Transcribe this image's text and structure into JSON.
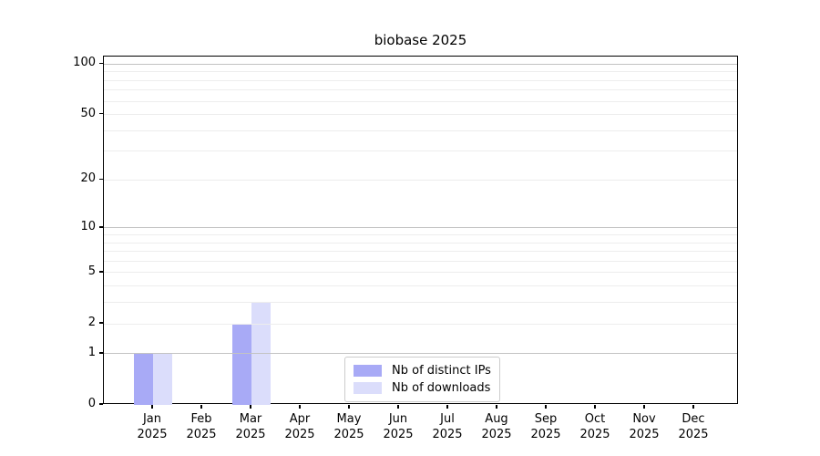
{
  "chart_data": {
    "type": "bar",
    "title": "biobase 2025",
    "x_axis": {
      "months": [
        "Jan",
        "Feb",
        "Mar",
        "Apr",
        "May",
        "Jun",
        "Jul",
        "Aug",
        "Sep",
        "Oct",
        "Nov",
        "Dec"
      ],
      "year": "2025"
    },
    "y_axis": {
      "scale": "log1p",
      "tick_labels": [
        "0",
        "1",
        "2",
        "5",
        "10",
        "20",
        "50",
        "100"
      ],
      "tick_values": [
        0,
        1,
        2,
        5,
        10,
        20,
        50,
        100
      ],
      "major_grid_values": [
        1,
        10,
        100
      ],
      "minor_grid_values": [
        2,
        3,
        4,
        5,
        6,
        7,
        8,
        9,
        20,
        30,
        40,
        50,
        60,
        70,
        80,
        90
      ],
      "ylim": [
        0,
        111
      ]
    },
    "series": [
      {
        "name": "Nb of distinct IPs",
        "color": "#a8aaf6",
        "values": [
          1,
          0,
          2,
          0,
          0,
          0,
          0,
          0,
          0,
          0,
          0,
          0
        ]
      },
      {
        "name": "Nb of downloads",
        "color": "#dbddfb",
        "values": [
          1,
          0,
          3,
          0,
          0,
          0,
          0,
          0,
          0,
          0,
          0,
          0
        ]
      }
    ],
    "legend": {
      "entries": [
        "Nb of distinct IPs",
        "Nb of downloads"
      ],
      "position": "lower center"
    },
    "grid": true
  }
}
